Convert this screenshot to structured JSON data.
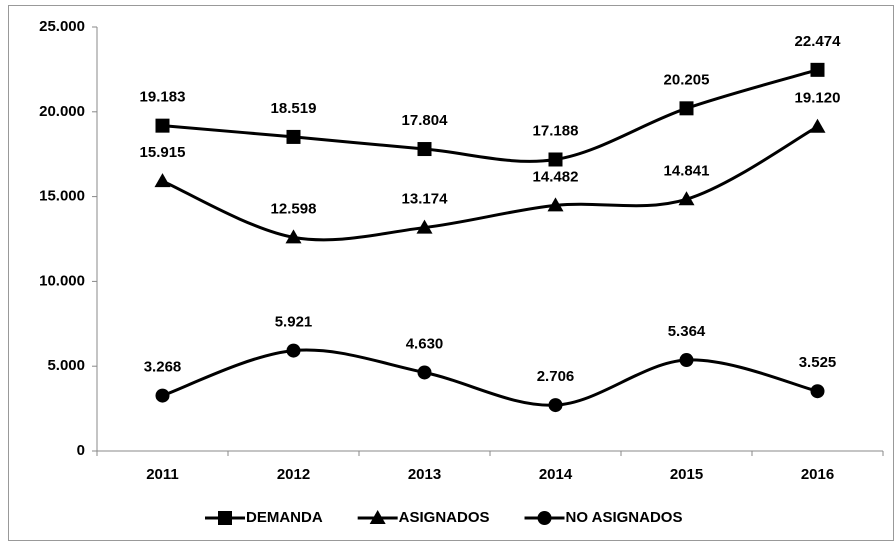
{
  "chart_data": {
    "type": "line",
    "categories": [
      "2011",
      "2012",
      "2013",
      "2014",
      "2015",
      "2016"
    ],
    "series": [
      {
        "name": "DEMANDA",
        "color": "#000000",
        "marker": "square",
        "values": [
          19183,
          18519,
          17804,
          17188,
          20205,
          22474
        ],
        "value_labels": [
          "19.183",
          "18.519",
          "17.804",
          "17.188",
          "20.205",
          "22.474"
        ]
      },
      {
        "name": "ASIGNADOS",
        "color": "#000000",
        "marker": "triangle",
        "values": [
          15915,
          12598,
          13174,
          14482,
          14841,
          19120
        ],
        "value_labels": [
          "15.915",
          "12.598",
          "13.174",
          "14.482",
          "14.841",
          "19.120"
        ]
      },
      {
        "name": "NO ASIGNADOS",
        "color": "#000000",
        "marker": "circle",
        "values": [
          3268,
          5921,
          4630,
          2706,
          5364,
          3525
        ],
        "value_labels": [
          "3.268",
          "5.921",
          "4.630",
          "2.706",
          "5.364",
          "3.525"
        ]
      }
    ],
    "ylim": [
      0,
      25000
    ],
    "yticks": [
      0,
      {
        "value": 5000,
        "label": "5.000"
      },
      {
        "value": 10000,
        "label": "10.000"
      },
      {
        "value": 15000,
        "label": "15.000"
      },
      {
        "value": 20000,
        "label": "20.000"
      },
      {
        "value": 25000,
        "label": "25.000"
      }
    ],
    "grid": false,
    "smooth": true,
    "legend": "bottom"
  }
}
